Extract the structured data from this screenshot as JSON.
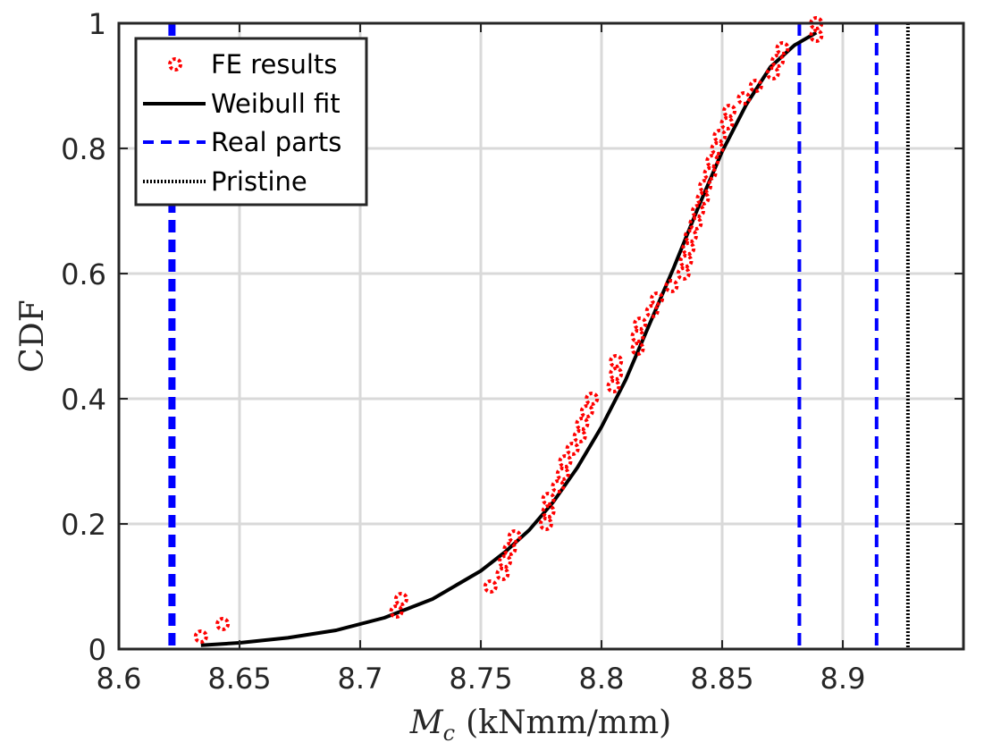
{
  "chart_data": {
    "type": "scatter",
    "xlabel_symbol": "M",
    "xlabel_subscript": "c",
    "xlabel_units": "(kNmm/mm)",
    "ylabel": "CDF",
    "xlim": [
      8.6,
      8.95
    ],
    "ylim": [
      0,
      1
    ],
    "xticks": [
      8.6,
      8.65,
      8.7,
      8.75,
      8.8,
      8.85,
      8.9
    ],
    "xtick_labels": [
      "8.6",
      "8.65",
      "8.7",
      "8.75",
      "8.8",
      "8.85",
      "8.9"
    ],
    "yticks": [
      0,
      0.2,
      0.4,
      0.6,
      0.8,
      1
    ],
    "ytick_labels": [
      "0",
      "0.2",
      "0.4",
      "0.6",
      "0.8",
      "1"
    ],
    "grid": true,
    "legend_position": "top-left",
    "legend": [
      "FE results",
      "Weibull fit",
      "Real parts",
      "Pristine"
    ],
    "colors": {
      "fe_results": "#ff0000",
      "weibull_fit": "#000000",
      "real_parts": "#0000ff",
      "pristine": "#000000",
      "grid": "#d9d9d9",
      "axes": "#262626"
    },
    "series": [
      {
        "name": "FE results",
        "type": "scatter",
        "points": [
          [
            8.634,
            0.02
          ],
          [
            8.643,
            0.04
          ],
          [
            8.715,
            0.06
          ],
          [
            8.717,
            0.08
          ],
          [
            8.754,
            0.1
          ],
          [
            8.759,
            0.12
          ],
          [
            8.76,
            0.14
          ],
          [
            8.762,
            0.16
          ],
          [
            8.764,
            0.18
          ],
          [
            8.777,
            0.2
          ],
          [
            8.778,
            0.22
          ],
          [
            8.778,
            0.24
          ],
          [
            8.782,
            0.26
          ],
          [
            8.784,
            0.28
          ],
          [
            8.785,
            0.3
          ],
          [
            8.788,
            0.32
          ],
          [
            8.791,
            0.34
          ],
          [
            8.792,
            0.36
          ],
          [
            8.794,
            0.38
          ],
          [
            8.796,
            0.4
          ],
          [
            8.805,
            0.42
          ],
          [
            8.806,
            0.44
          ],
          [
            8.806,
            0.46
          ],
          [
            8.815,
            0.48
          ],
          [
            8.815,
            0.5
          ],
          [
            8.816,
            0.52
          ],
          [
            8.821,
            0.54
          ],
          [
            8.823,
            0.56
          ],
          [
            8.829,
            0.58
          ],
          [
            8.834,
            0.6
          ],
          [
            8.835,
            0.62
          ],
          [
            8.836,
            0.64
          ],
          [
            8.837,
            0.66
          ],
          [
            8.839,
            0.68
          ],
          [
            8.84,
            0.7
          ],
          [
            8.842,
            0.72
          ],
          [
            8.843,
            0.74
          ],
          [
            8.845,
            0.76
          ],
          [
            8.846,
            0.78
          ],
          [
            8.848,
            0.8
          ],
          [
            8.849,
            0.82
          ],
          [
            8.852,
            0.84
          ],
          [
            8.853,
            0.86
          ],
          [
            8.859,
            0.88
          ],
          [
            8.864,
            0.9
          ],
          [
            8.871,
            0.92
          ],
          [
            8.873,
            0.94
          ],
          [
            8.875,
            0.96
          ],
          [
            8.889,
            0.98
          ],
          [
            8.889,
            1.0
          ]
        ]
      },
      {
        "name": "Weibull fit",
        "type": "line",
        "style": "solid",
        "points": [
          [
            8.634,
            0.006
          ],
          [
            8.65,
            0.01
          ],
          [
            8.67,
            0.018
          ],
          [
            8.69,
            0.03
          ],
          [
            8.71,
            0.05
          ],
          [
            8.73,
            0.08
          ],
          [
            8.75,
            0.125
          ],
          [
            8.76,
            0.155
          ],
          [
            8.77,
            0.19
          ],
          [
            8.78,
            0.235
          ],
          [
            8.79,
            0.29
          ],
          [
            8.8,
            0.355
          ],
          [
            8.81,
            0.43
          ],
          [
            8.82,
            0.52
          ],
          [
            8.83,
            0.61
          ],
          [
            8.84,
            0.705
          ],
          [
            8.85,
            0.795
          ],
          [
            8.86,
            0.87
          ],
          [
            8.87,
            0.93
          ],
          [
            8.88,
            0.965
          ],
          [
            8.889,
            0.985
          ]
        ]
      },
      {
        "name": "Real parts",
        "type": "vline",
        "style": "dashed",
        "x": [
          8.622,
          8.882,
          8.914
        ]
      },
      {
        "name": "Pristine",
        "type": "vline",
        "style": "dotted",
        "x": [
          8.927
        ]
      }
    ]
  }
}
